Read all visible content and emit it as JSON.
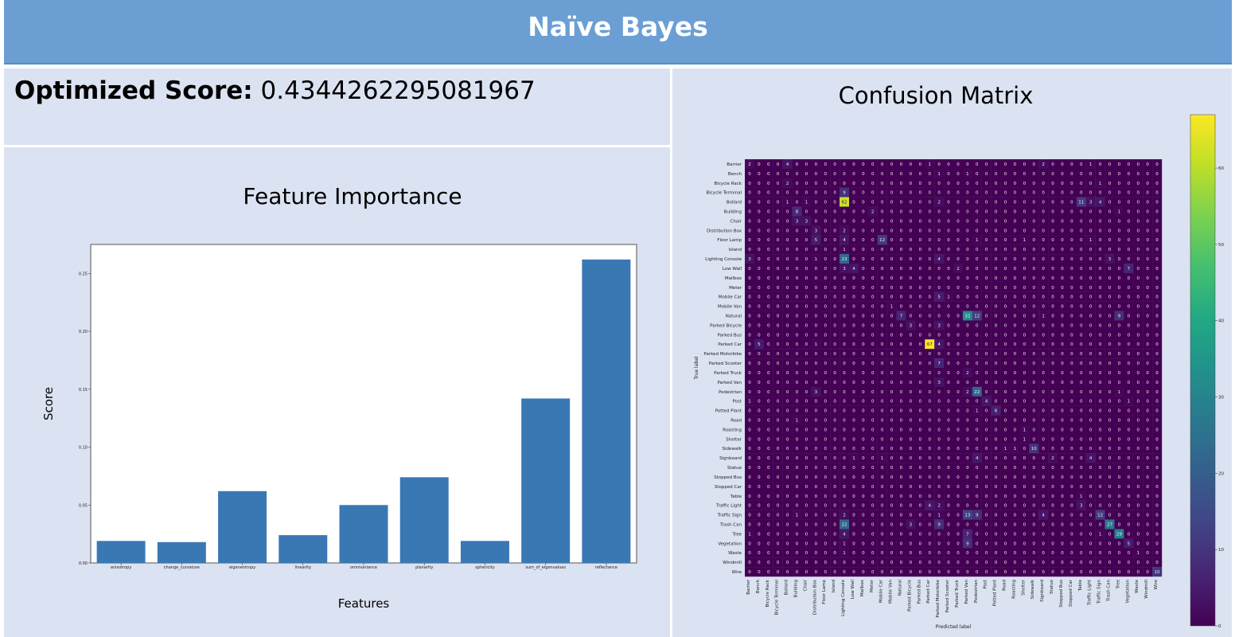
{
  "header": {
    "title": "Naïve Bayes"
  },
  "score": {
    "label": "Optimized Score:",
    "value": "0.4344262295081967"
  },
  "chart_data": [
    {
      "type": "bar",
      "title": "Feature Importance",
      "xlabel": "Features",
      "ylabel": "Score",
      "categories": [
        "anisotropy",
        "change_curvature",
        "eigenentropy",
        "linearity",
        "omnivariance",
        "planarity",
        "sphericity",
        "sum_of_eigenvalues",
        "reflectance"
      ],
      "values": [
        0.019,
        0.018,
        0.062,
        0.024,
        0.05,
        0.074,
        0.019,
        0.142,
        0.262
      ],
      "yticks": [
        0.0,
        0.05,
        0.1,
        0.15,
        0.2,
        0.25
      ],
      "ylim": [
        0,
        0.275
      ],
      "bar_color": "#3a78b4",
      "grid": false
    },
    {
      "type": "heatmap",
      "title": "Confusion Matrix",
      "xlabel": "Predicted label",
      "ylabel": "True label",
      "labels": [
        "Barrier",
        "Bench",
        "Bicycle Rack",
        "Bicycle Terminal",
        "Bollard",
        "Building",
        "Chair",
        "Distribution Box",
        "Floor Lamp",
        "Island",
        "Lighting Console",
        "Low Wall",
        "Mailbox",
        "Meter",
        "Mobile Car",
        "Mobile Van",
        "Natural",
        "Parked Bicycle",
        "Parked Bus",
        "Parked Car",
        "Parked Motorbike",
        "Parked Scooter",
        "Parked Truck",
        "Parked Van",
        "Pedestrian",
        "Post",
        "Potted Plant",
        "Road",
        "Roasting",
        "Shelter",
        "Sidewalk",
        "Signboard",
        "Statue",
        "Stopped Bus",
        "Stopped Car",
        "Table",
        "Traffic Light",
        "Traffic Sign",
        "Trash Can",
        "Tree",
        "Vegetation",
        "Waste",
        "Windmill",
        "Wire"
      ],
      "nonzero_cells": [
        [
          0,
          0,
          2
        ],
        [
          0,
          4,
          4
        ],
        [
          0,
          19,
          1
        ],
        [
          0,
          31,
          2
        ],
        [
          0,
          36,
          1
        ],
        [
          1,
          20,
          1
        ],
        [
          1,
          23,
          1
        ],
        [
          2,
          4,
          2
        ],
        [
          2,
          37,
          1
        ],
        [
          3,
          10,
          9
        ],
        [
          4,
          4,
          1
        ],
        [
          4,
          6,
          1
        ],
        [
          4,
          10,
          62
        ],
        [
          4,
          20,
          2
        ],
        [
          4,
          35,
          11
        ],
        [
          4,
          36,
          3
        ],
        [
          4,
          37,
          4
        ],
        [
          5,
          5,
          8
        ],
        [
          5,
          13,
          2
        ],
        [
          5,
          39,
          1
        ],
        [
          6,
          5,
          3
        ],
        [
          6,
          6,
          3
        ],
        [
          7,
          7,
          3
        ],
        [
          7,
          10,
          2
        ],
        [
          8,
          7,
          5
        ],
        [
          8,
          10,
          4
        ],
        [
          8,
          14,
          12
        ],
        [
          8,
          24,
          1
        ],
        [
          8,
          29,
          1
        ],
        [
          8,
          36,
          1
        ],
        [
          9,
          10,
          1
        ],
        [
          10,
          0,
          3
        ],
        [
          10,
          7,
          1
        ],
        [
          10,
          10,
          23
        ],
        [
          10,
          20,
          4
        ],
        [
          10,
          38,
          3
        ],
        [
          11,
          10,
          3
        ],
        [
          11,
          11,
          4
        ],
        [
          11,
          22,
          2
        ],
        [
          11,
          40,
          7
        ],
        [
          14,
          20,
          5
        ],
        [
          14,
          21,
          1
        ],
        [
          15,
          15,
          1
        ],
        [
          16,
          16,
          7
        ],
        [
          16,
          23,
          32
        ],
        [
          16,
          24,
          12
        ],
        [
          16,
          31,
          1
        ],
        [
          16,
          39,
          9
        ],
        [
          17,
          17,
          3
        ],
        [
          17,
          20,
          3
        ],
        [
          18,
          21,
          0
        ],
        [
          19,
          1,
          5
        ],
        [
          19,
          7,
          1
        ],
        [
          19,
          19,
          67
        ],
        [
          19,
          20,
          4
        ],
        [
          21,
          20,
          7
        ],
        [
          22,
          23,
          2
        ],
        [
          23,
          20,
          3
        ],
        [
          24,
          7,
          3
        ],
        [
          24,
          23,
          2
        ],
        [
          24,
          24,
          22
        ],
        [
          24,
          39,
          1
        ],
        [
          25,
          0,
          1
        ],
        [
          25,
          25,
          4
        ],
        [
          25,
          40,
          1
        ],
        [
          26,
          24,
          1
        ],
        [
          26,
          26,
          6
        ],
        [
          27,
          5,
          1
        ],
        [
          28,
          29,
          1
        ],
        [
          29,
          29,
          1
        ],
        [
          30,
          27,
          1
        ],
        [
          30,
          28,
          1
        ],
        [
          30,
          30,
          10
        ],
        [
          31,
          11,
          1
        ],
        [
          31,
          14,
          1
        ],
        [
          31,
          24,
          4
        ],
        [
          31,
          32,
          2
        ],
        [
          31,
          36,
          4
        ],
        [
          35,
          35,
          1
        ],
        [
          36,
          19,
          4
        ],
        [
          36,
          20,
          2
        ],
        [
          36,
          35,
          3
        ],
        [
          37,
          5,
          1
        ],
        [
          37,
          10,
          2
        ],
        [
          37,
          20,
          1
        ],
        [
          37,
          23,
          13
        ],
        [
          37,
          24,
          9
        ],
        [
          37,
          31,
          4
        ],
        [
          37,
          37,
          12
        ],
        [
          38,
          10,
          22
        ],
        [
          38,
          17,
          3
        ],
        [
          38,
          20,
          9
        ],
        [
          38,
          38,
          27
        ],
        [
          39,
          0,
          1
        ],
        [
          39,
          10,
          4
        ],
        [
          39,
          23,
          7
        ],
        [
          39,
          37,
          1
        ],
        [
          39,
          39,
          29
        ],
        [
          40,
          10,
          1
        ],
        [
          40,
          23,
          9
        ],
        [
          40,
          40,
          5
        ],
        [
          41,
          10,
          1
        ],
        [
          41,
          41,
          1
        ],
        [
          43,
          43,
          10
        ]
      ],
      "colorbar_ticks": [
        0,
        10,
        20,
        30,
        40,
        50,
        60
      ],
      "vmax": 67,
      "colormap": "viridis"
    }
  ]
}
